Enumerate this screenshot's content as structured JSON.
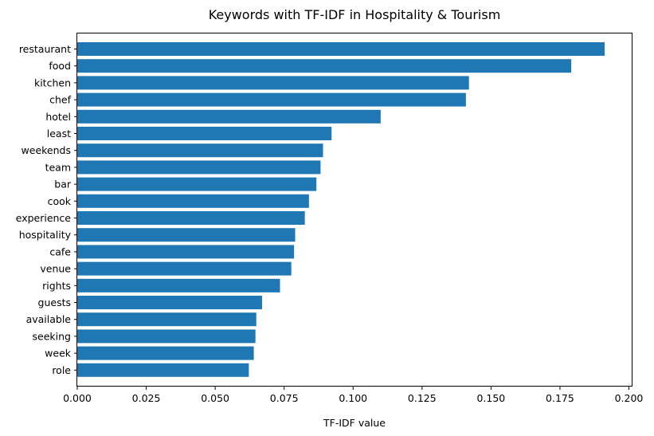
{
  "chart_data": {
    "type": "bar",
    "orientation": "horizontal",
    "title": "Keywords with TF-IDF in Hospitality & Tourism",
    "xlabel": "TF-IDF value",
    "ylabel": "",
    "xlim": [
      0,
      0.2013
    ],
    "xticks": [
      "0.000",
      "0.025",
      "0.050",
      "0.075",
      "0.100",
      "0.125",
      "0.150",
      "0.175",
      "0.200"
    ],
    "grid": false,
    "bar_color": "#1f77b4",
    "categories": [
      "restaurant",
      "food",
      "kitchen",
      "chef",
      "hotel",
      "least",
      "weekends",
      "team",
      "bar",
      "cook",
      "experience",
      "hospitality",
      "cafe",
      "venue",
      "rights",
      "guests",
      "available",
      "seeking",
      "week",
      "role"
    ],
    "values": [
      0.1912,
      0.1791,
      0.142,
      0.1409,
      0.11,
      0.0922,
      0.0891,
      0.0882,
      0.0867,
      0.084,
      0.0825,
      0.079,
      0.0786,
      0.0776,
      0.0735,
      0.067,
      0.0649,
      0.0646,
      0.064,
      0.0622
    ]
  }
}
